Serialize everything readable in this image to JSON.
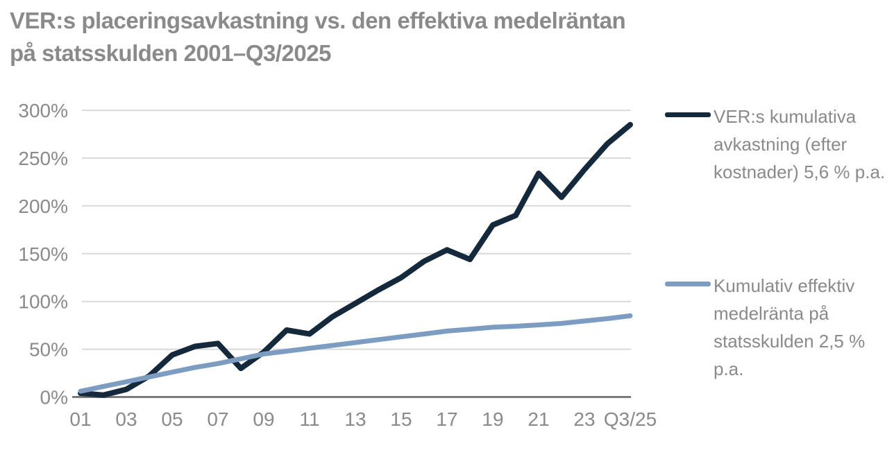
{
  "title": {
    "line1": "VER:s placeringsavkastning vs. den effektiva medelräntan",
    "line2": "på statsskulden 2001–Q3/2025"
  },
  "colors": {
    "series1": "#14293c",
    "series2": "#7d9cc2",
    "text_gray": "#8a8a8a",
    "gridline": "#d9d9d9",
    "axis_line": "#7a7a7a",
    "background": "#ffffff"
  },
  "chart_data": {
    "type": "line",
    "title": "VER:s placeringsavkastning vs. den effektiva medelräntan på statsskulden 2001–Q3/2025",
    "x_points": [
      "2001",
      "2002",
      "2003",
      "2004",
      "2005",
      "2006",
      "2007",
      "2008",
      "2009",
      "2010",
      "2011",
      "2012",
      "2013",
      "2014",
      "2015",
      "2016",
      "2017",
      "2018",
      "2019",
      "2020",
      "2021",
      "2022",
      "2023",
      "2024",
      "Q3/2025"
    ],
    "x_tick_labels": [
      "01",
      "03",
      "05",
      "07",
      "09",
      "11",
      "13",
      "15",
      "17",
      "19",
      "21",
      "23",
      "Q3/25"
    ],
    "ytick_labels": [
      "0%",
      "50%",
      "100%",
      "150%",
      "200%",
      "250%",
      "300%"
    ],
    "ytick_values": [
      0,
      50,
      100,
      150,
      200,
      250,
      300
    ],
    "ylim": [
      0,
      300
    ],
    "grid": true,
    "legend_position": "right",
    "series": [
      {
        "name": "VER:s kumulativa avkastning (efter kostnader) 5,6 % p.a.",
        "color": "#14293c",
        "values": [
          4,
          2,
          8,
          22,
          44,
          53,
          56,
          30,
          47,
          70,
          66,
          84,
          98,
          112,
          125,
          142,
          154,
          144,
          180,
          190,
          234,
          209,
          238,
          265,
          285
        ]
      },
      {
        "name": "Kumulativ effektiv medelränta på statsskulden 2,5 % p.a.",
        "color": "#7d9cc2",
        "values": [
          6,
          11,
          16,
          21,
          26,
          31,
          35,
          40,
          45,
          48,
          51,
          54,
          57,
          60,
          63,
          66,
          69,
          71,
          73,
          74,
          75.5,
          77,
          79.5,
          82,
          85
        ]
      }
    ]
  }
}
